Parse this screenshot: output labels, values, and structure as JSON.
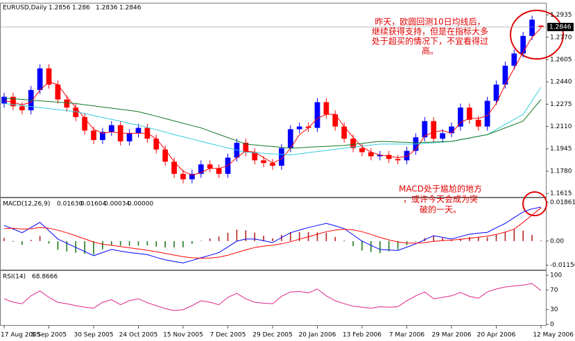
{
  "chart_data": [
    {
      "type": "candlestick",
      "title": "EURUSD,Daily",
      "categories": [
        "17 Aug 2005",
        null,
        null,
        null,
        null,
        "8 Sep 2005",
        null,
        null,
        null,
        null,
        "30 Sep 2005",
        null,
        null,
        null,
        null,
        "24 Oct 2005",
        null,
        null,
        null,
        null,
        "15 Nov 2005",
        null,
        null,
        null,
        null,
        "7 Dec 2005",
        null,
        null,
        null,
        null,
        "29 Dec 2005",
        null,
        null,
        null,
        null,
        "20 Jan 2006",
        null,
        null,
        null,
        null,
        "13 Feb 2006",
        null,
        null,
        null,
        null,
        "7 Mar 2006",
        null,
        null,
        null,
        null,
        "29 Mar 2006",
        null,
        null,
        null,
        null,
        "20 Apr 2006",
        null,
        null,
        null,
        null,
        "12 May 2006"
      ],
      "open": [
        1.228,
        1.233,
        1.226,
        1.223,
        1.238,
        1.254,
        1.242,
        1.231,
        1.225,
        1.218,
        1.208,
        1.201,
        1.207,
        1.212,
        1.2,
        1.206,
        1.21,
        1.202,
        1.194,
        1.185,
        1.176,
        1.172,
        1.176,
        1.183,
        1.18,
        1.176,
        1.188,
        1.199,
        1.192,
        1.186,
        1.184,
        1.182,
        1.195,
        1.209,
        1.211,
        1.21,
        1.229,
        1.22,
        1.211,
        1.202,
        1.195,
        1.192,
        1.189,
        1.19,
        1.187,
        1.186,
        1.193,
        1.203,
        1.215,
        1.202,
        1.206,
        1.211,
        1.225,
        1.216,
        1.211,
        1.23,
        1.242,
        1.256,
        1.265,
        1.278,
        1.2856
      ],
      "high": [
        1.236,
        1.236,
        1.229,
        1.241,
        1.257,
        1.257,
        1.245,
        1.234,
        1.228,
        1.221,
        1.211,
        1.21,
        1.215,
        1.215,
        1.209,
        1.213,
        1.213,
        1.205,
        1.197,
        1.188,
        1.179,
        1.179,
        1.186,
        1.186,
        1.183,
        1.191,
        1.202,
        1.202,
        1.195,
        1.189,
        1.187,
        1.198,
        1.212,
        1.214,
        1.214,
        1.232,
        1.232,
        1.223,
        1.214,
        1.205,
        1.198,
        1.195,
        1.193,
        1.193,
        1.19,
        1.196,
        1.206,
        1.218,
        1.218,
        1.209,
        1.214,
        1.228,
        1.228,
        1.219,
        1.233,
        1.245,
        1.259,
        1.268,
        1.281,
        1.293,
        1.286
      ],
      "low": [
        1.225,
        1.223,
        1.22,
        1.22,
        1.235,
        1.239,
        1.228,
        1.222,
        1.215,
        1.205,
        1.198,
        1.198,
        1.204,
        1.197,
        1.197,
        1.203,
        1.199,
        1.191,
        1.182,
        1.173,
        1.169,
        1.169,
        1.173,
        1.177,
        1.173,
        1.173,
        1.185,
        1.189,
        1.183,
        1.181,
        1.179,
        1.179,
        1.192,
        1.206,
        1.207,
        1.207,
        1.217,
        1.208,
        1.199,
        1.192,
        1.189,
        1.186,
        1.186,
        1.184,
        1.183,
        1.183,
        1.19,
        1.2,
        1.199,
        1.199,
        1.203,
        1.208,
        1.213,
        1.208,
        1.208,
        1.227,
        1.239,
        1.253,
        1.262,
        1.275,
        1.2836
      ],
      "close": [
        1.233,
        1.226,
        1.223,
        1.238,
        1.254,
        1.242,
        1.231,
        1.225,
        1.218,
        1.208,
        1.201,
        1.207,
        1.212,
        1.2,
        1.206,
        1.21,
        1.202,
        1.194,
        1.185,
        1.176,
        1.172,
        1.176,
        1.183,
        1.18,
        1.176,
        1.188,
        1.199,
        1.192,
        1.186,
        1.184,
        1.182,
        1.195,
        1.209,
        1.211,
        1.21,
        1.229,
        1.22,
        1.211,
        1.202,
        1.195,
        1.192,
        1.189,
        1.19,
        1.187,
        1.186,
        1.193,
        1.203,
        1.215,
        1.202,
        1.206,
        1.211,
        1.225,
        1.216,
        1.211,
        1.23,
        1.242,
        1.256,
        1.265,
        1.278,
        1.29,
        1.2846
      ],
      "up_color": "#0000ff",
      "down_color": "#ff0000",
      "series": [
        {
          "color": "#ff0000",
          "values": [
            1.23,
            1.229,
            1.227,
            1.229,
            1.238,
            1.244,
            1.242,
            1.233,
            1.225,
            1.217,
            1.209,
            1.206,
            1.207,
            1.206,
            1.206,
            1.206,
            1.206,
            1.202,
            1.194,
            1.185,
            1.178,
            1.175,
            1.177,
            1.18,
            1.18,
            1.182,
            1.188,
            1.193,
            1.192,
            1.188,
            1.184,
            1.187,
            1.195,
            1.205,
            1.21,
            1.217,
            1.22,
            1.22,
            1.211,
            1.203,
            1.196,
            1.192,
            1.19,
            1.189,
            1.188,
            1.189,
            1.194,
            1.204,
            1.207,
            1.208,
            1.206,
            1.214,
            1.217,
            1.217,
            1.219,
            1.228,
            1.242,
            1.254,
            1.266,
            1.277,
            1.284
          ]
        },
        {
          "color": "#33ccdd",
          "values": [
            1.228,
            1.2273,
            1.2265,
            1.2258,
            1.225,
            1.2243,
            1.2235,
            1.2228,
            1.222,
            1.2206,
            1.2191,
            1.2177,
            1.2163,
            1.2149,
            1.2134,
            1.212,
            1.2103,
            1.2086,
            1.2069,
            1.2051,
            1.2034,
            1.2017,
            1.2,
            1.1984,
            1.1968,
            1.1952,
            1.1936,
            1.192,
            1.1916,
            1.1912,
            1.1908,
            1.1904,
            1.19,
            1.1908,
            1.1917,
            1.1925,
            1.1933,
            1.1942,
            1.195,
            1.1958,
            1.1965,
            1.1973,
            1.198,
            1.198,
            1.198,
            1.198,
            1.198,
            1.1985,
            1.199,
            1.1995,
            1.2,
            1.2013,
            1.2025,
            1.2038,
            1.205,
            1.2088,
            1.2125,
            1.2163,
            1.22,
            1.23,
            1.24
          ]
        },
        {
          "color": "#117722",
          "values": [
            1.232,
            1.2315,
            1.231,
            1.2305,
            1.23,
            1.2295,
            1.229,
            1.2285,
            1.228,
            1.2271,
            1.2263,
            1.2254,
            1.2246,
            1.2237,
            1.2229,
            1.222,
            1.2203,
            1.2186,
            1.2169,
            1.2151,
            1.2134,
            1.2117,
            1.21,
            1.2076,
            1.2052,
            1.2028,
            1.2004,
            1.198,
            1.1974,
            1.1968,
            1.1962,
            1.1956,
            1.195,
            1.1953,
            1.1957,
            1.196,
            1.1963,
            1.1967,
            1.197,
            1.1978,
            1.1985,
            1.1993,
            1.2,
            1.1998,
            1.1995,
            1.1993,
            1.199,
            1.1993,
            1.1995,
            1.1998,
            1.2,
            1.2013,
            1.2025,
            1.2038,
            1.205,
            1.2075,
            1.21,
            1.2125,
            1.215,
            1.223,
            1.231
          ]
        }
      ],
      "ylim": [
        1.159,
        1.302
      ],
      "yticks": [
        1.1615,
        {
          "value": 1.178,
          "label": "1.1780"
        },
        1.1945,
        {
          "value": 1.211,
          "label": "1.2110"
        },
        1.2275,
        {
          "value": 1.244,
          "label": "1.2440"
        },
        1.2605,
        {
          "value": 1.277,
          "label": "1.2770"
        },
        1.2935
      ],
      "annotation": [
        "昨天，欧圆回测10日均线后，",
        "继续获得支持，但是在指标大多",
        "处于超买的情况下，不宜看得过",
        "高。"
      ]
    },
    {
      "type": "macd",
      "title": "MACD(12,26,9)",
      "readout": [
        "0.01630",
        "0.01604",
        "0.00034",
        "0.00000"
      ],
      "histogram": [
        0.0015,
        -0.0004,
        -0.0018,
        0.0006,
        0.0025,
        -0.0012,
        -0.0042,
        -0.005,
        -0.0056,
        -0.0061,
        -0.0065,
        -0.004,
        -0.002,
        -0.0022,
        -0.0023,
        -0.0022,
        -0.0021,
        -0.0027,
        -0.0031,
        -0.0031,
        -0.003,
        -0.0013,
        0.0002,
        0.0013,
        0.0022,
        0.004,
        0.0055,
        0.0052,
        0.0041,
        0.0026,
        0.0013,
        0.003,
        0.0043,
        0.0044,
        0.0044,
        0.0042,
        0.004,
        0.002,
        0.0003,
        -0.0024,
        -0.0045,
        -0.0052,
        -0.0058,
        -0.0049,
        -0.0041,
        -0.002,
        -0.0003,
        0.0014,
        0.0027,
        0.0015,
        0.0005,
        0.0013,
        0.0019,
        0.0019,
        0.0018,
        0.0032,
        0.0042,
        0.0056,
        0.005,
        0.003,
        0.0003
      ],
      "positive_color": "#b22222",
      "negative_color": "#1e7b1e",
      "series": [
        {
          "color": "#0000ff",
          "values": [
            0.0075,
            0.0058,
            0.004,
            0.0065,
            0.009,
            0.005,
            0.001,
            -0.001,
            -0.003,
            -0.005,
            -0.007,
            -0.0055,
            -0.004,
            -0.0048,
            -0.0055,
            -0.006,
            -0.0065,
            -0.0078,
            -0.009,
            -0.0098,
            -0.0105,
            -0.0093,
            -0.008,
            -0.0068,
            -0.0055,
            -0.0028,
            0.0,
            0.001,
            0.001,
            0.0002,
            -0.0007,
            0.0017,
            0.004,
            0.0053,
            0.0065,
            0.0075,
            0.0085,
            0.0073,
            0.006,
            0.003,
            0.0,
            -0.002,
            -0.004,
            -0.0043,
            -0.0045,
            -0.0029,
            -0.0013,
            0.0007,
            0.0026,
            0.0018,
            0.001,
            0.0022,
            0.0033,
            0.0038,
            0.0042,
            0.0064,
            0.0085,
            0.0113,
            0.014,
            0.0155,
            0.0163
          ]
        },
        {
          "color": "#ff0000",
          "values": [
            0.006,
            0.0062,
            0.0058,
            0.0059,
            0.0065,
            0.0062,
            0.0052,
            0.004,
            0.0026,
            0.0011,
            -0.0005,
            -0.0015,
            -0.002,
            -0.0026,
            -0.0032,
            -0.0038,
            -0.0044,
            -0.0051,
            -0.0059,
            -0.0067,
            -0.0075,
            -0.008,
            -0.0082,
            -0.0081,
            -0.0077,
            -0.0068,
            -0.0055,
            -0.0042,
            -0.0031,
            -0.0024,
            -0.002,
            -0.0013,
            -0.0003,
            0.0009,
            0.0021,
            0.0033,
            0.0045,
            0.0053,
            0.0057,
            0.0054,
            0.0045,
            0.0032,
            0.0018,
            0.0006,
            -0.0004,
            -0.0009,
            -0.001,
            -0.0007,
            -0.0001,
            0.0003,
            0.0005,
            0.0009,
            0.0014,
            0.0019,
            0.0024,
            0.0032,
            0.0043,
            0.0057,
            0.009,
            0.0125,
            0.016
          ]
        }
      ],
      "ylim": [
        -0.0137,
        0.0206
      ],
      "yticks": [
        0.01861,
        {
          "value": 0,
          "label": "0.00"
        },
        -0.01156
      ],
      "annotation": [
        "MACD处于尴尬的地方",
        "，或许今天会成为突",
        "破的一天。"
      ]
    },
    {
      "type": "rsi",
      "title": "RSI(14)",
      "series": [
        {
          "color": "#dd2288",
          "values": [
            52,
            45,
            42,
            58,
            68,
            55,
            45,
            42,
            38,
            35,
            33,
            45,
            50,
            40,
            48,
            52,
            44,
            38,
            32,
            28,
            30,
            38,
            48,
            45,
            40,
            55,
            63,
            52,
            45,
            43,
            42,
            57,
            66,
            67,
            64,
            72,
            58,
            48,
            42,
            37,
            35,
            33,
            36,
            35,
            36,
            48,
            58,
            66,
            52,
            55,
            58,
            65,
            57,
            53,
            66,
            72,
            76,
            78,
            80,
            83,
            68.8666
          ]
        }
      ],
      "ylim": [
        -2.8,
        108.5
      ],
      "yticks": [
        0,
        30,
        70,
        100
      ]
    }
  ]
}
